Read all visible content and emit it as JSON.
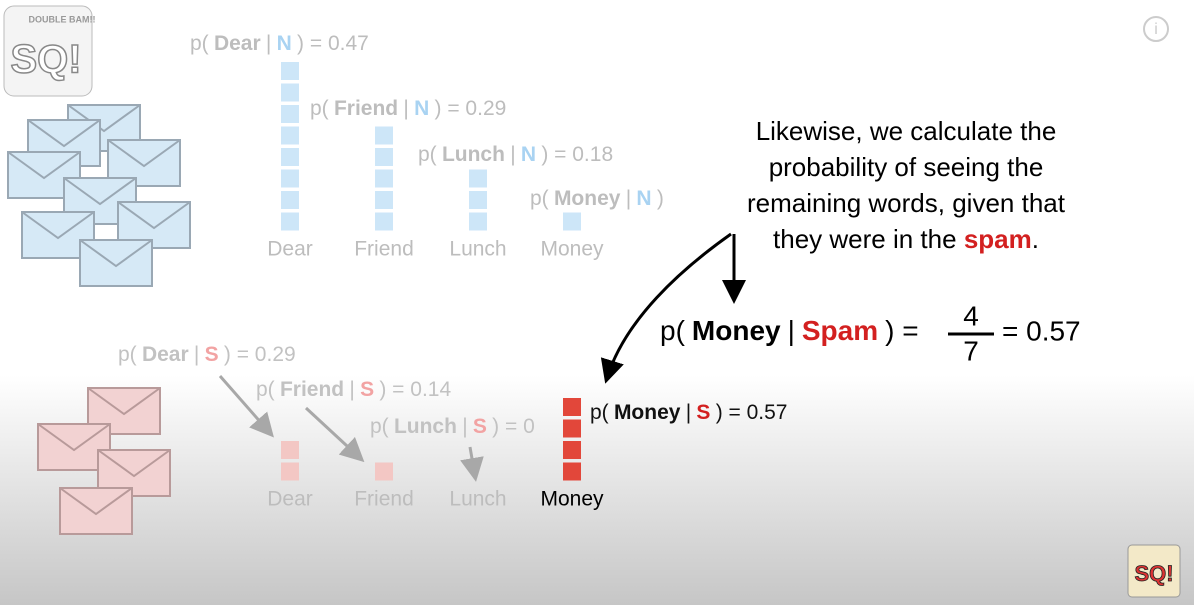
{
  "logo_top": {
    "main": "SQ!",
    "sub": "DOUBLE BAM!!"
  },
  "info_icon": "i",
  "normal": {
    "labels": [
      [
        "p(",
        "Dear",
        "|",
        "N",
        ") = 0.47"
      ],
      [
        "p(",
        "Friend",
        "|",
        "N",
        ") = 0.29"
      ],
      [
        "p(",
        "Lunch",
        "|",
        "N",
        ") = 0.18"
      ],
      [
        "p(",
        "Money",
        "|",
        "N",
        ")"
      ]
    ],
    "words": [
      "Dear",
      "Friend",
      "Lunch",
      "Money"
    ],
    "counts": [
      8,
      5,
      3,
      1
    ]
  },
  "spam": {
    "labels": [
      [
        "p(",
        "Dear",
        "|",
        "S",
        ") = 0.29"
      ],
      [
        "p(",
        "Friend",
        "|",
        "S",
        ") = 0.14"
      ],
      [
        "p(",
        "Lunch",
        "|",
        "S",
        ") = 0"
      ],
      [
        "p(",
        "Money",
        "|",
        "S",
        ") = 0.57"
      ]
    ],
    "words": [
      "Dear",
      "Friend",
      "Lunch",
      "Money"
    ],
    "counts": [
      2,
      1,
      0,
      4
    ]
  },
  "explanation": [
    [
      "Likewise, we calculate the"
    ],
    [
      "probability of seeing the"
    ],
    [
      "remaining words, given that"
    ],
    [
      "they were in the ",
      "spam",
      "."
    ]
  ],
  "equation": {
    "left": [
      "p(",
      "Money",
      "|",
      "Spam",
      ") ="
    ],
    "numerator": "4",
    "denominator": "7",
    "right": "= 0.57"
  },
  "logo_bottom": "SQ!"
}
